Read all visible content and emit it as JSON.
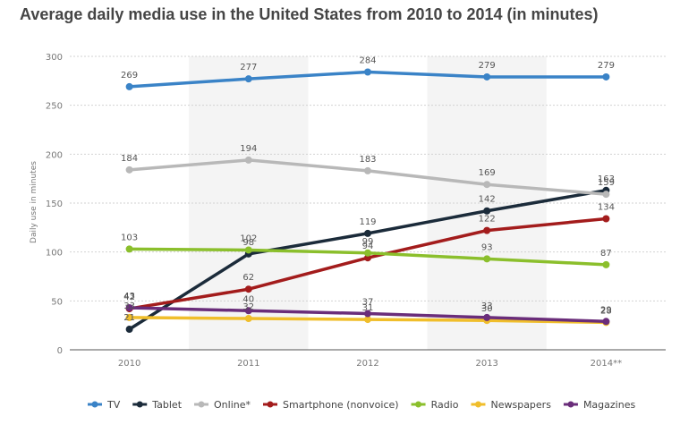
{
  "chart_data": {
    "type": "line",
    "title": "Average daily media use in the United States from 2010 to 2014 (in minutes)",
    "ylabel": "Daily use in minutes",
    "xlabel": "",
    "x": [
      "2010",
      "2011",
      "2012",
      "2013",
      "2014**"
    ],
    "ylim": [
      0,
      300
    ],
    "yticks": [
      0,
      50,
      100,
      150,
      200,
      250,
      300
    ],
    "grid": true,
    "legend": "bottom",
    "series": [
      {
        "name": "TV",
        "color": "#3a83c7",
        "values": [
          269,
          277,
          284,
          279,
          279
        ]
      },
      {
        "name": "Tablet",
        "color": "#1b2b3a",
        "values": [
          21,
          98,
          119,
          142,
          163
        ]
      },
      {
        "name": "Online*",
        "color": "#b8b8b8",
        "values": [
          184,
          194,
          183,
          169,
          159
        ]
      },
      {
        "name": "Smartphone (nonvoice)",
        "color": "#a31c1c",
        "values": [
          42,
          62,
          94,
          122,
          134
        ]
      },
      {
        "name": "Radio",
        "color": "#8bbf2c",
        "values": [
          103,
          102,
          99,
          93,
          87
        ]
      },
      {
        "name": "Newspapers",
        "color": "#f0be2b",
        "values": [
          33,
          32,
          31,
          30,
          28
        ]
      },
      {
        "name": "Magazines",
        "color": "#6a2d7a",
        "values": [
          43,
          40,
          37,
          33,
          29
        ]
      }
    ]
  }
}
